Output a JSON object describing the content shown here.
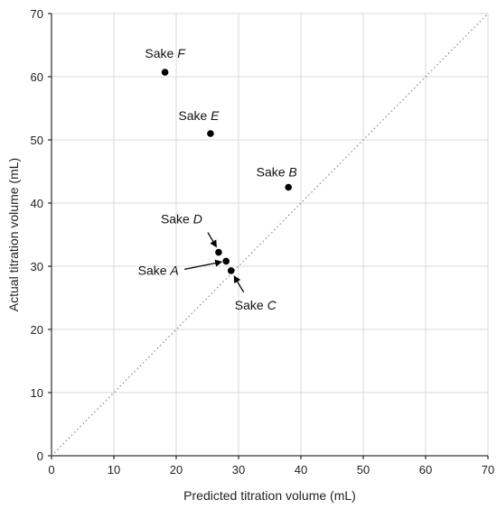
{
  "chart_data": {
    "type": "scatter",
    "title": "",
    "xlabel": "Predicted titration volume (mL)",
    "ylabel": "Actual titration volume (mL)",
    "xlim": [
      0,
      70
    ],
    "ylim": [
      0,
      70
    ],
    "xticks": [
      0,
      10,
      20,
      30,
      40,
      50,
      60,
      70
    ],
    "yticks": [
      0,
      10,
      20,
      30,
      40,
      50,
      60,
      70
    ],
    "grid": true,
    "reference_line": {
      "style": "dotted",
      "from": [
        0,
        0
      ],
      "to": [
        70,
        70
      ],
      "color": "#888888"
    },
    "marker_color": "#000000",
    "points": [
      {
        "prefix": "Sake ",
        "id": "A",
        "x": 28.0,
        "y": 30.8
      },
      {
        "prefix": "Sake ",
        "id": "B",
        "x": 38.0,
        "y": 42.5
      },
      {
        "prefix": "Sake ",
        "id": "C",
        "x": 28.8,
        "y": 29.3
      },
      {
        "prefix": "Sake ",
        "id": "D",
        "x": 26.8,
        "y": 32.2
      },
      {
        "prefix": "Sake ",
        "id": "E",
        "x": 25.5,
        "y": 51.0
      },
      {
        "prefix": "Sake ",
        "id": "F",
        "x": 18.2,
        "y": 60.7
      }
    ]
  }
}
